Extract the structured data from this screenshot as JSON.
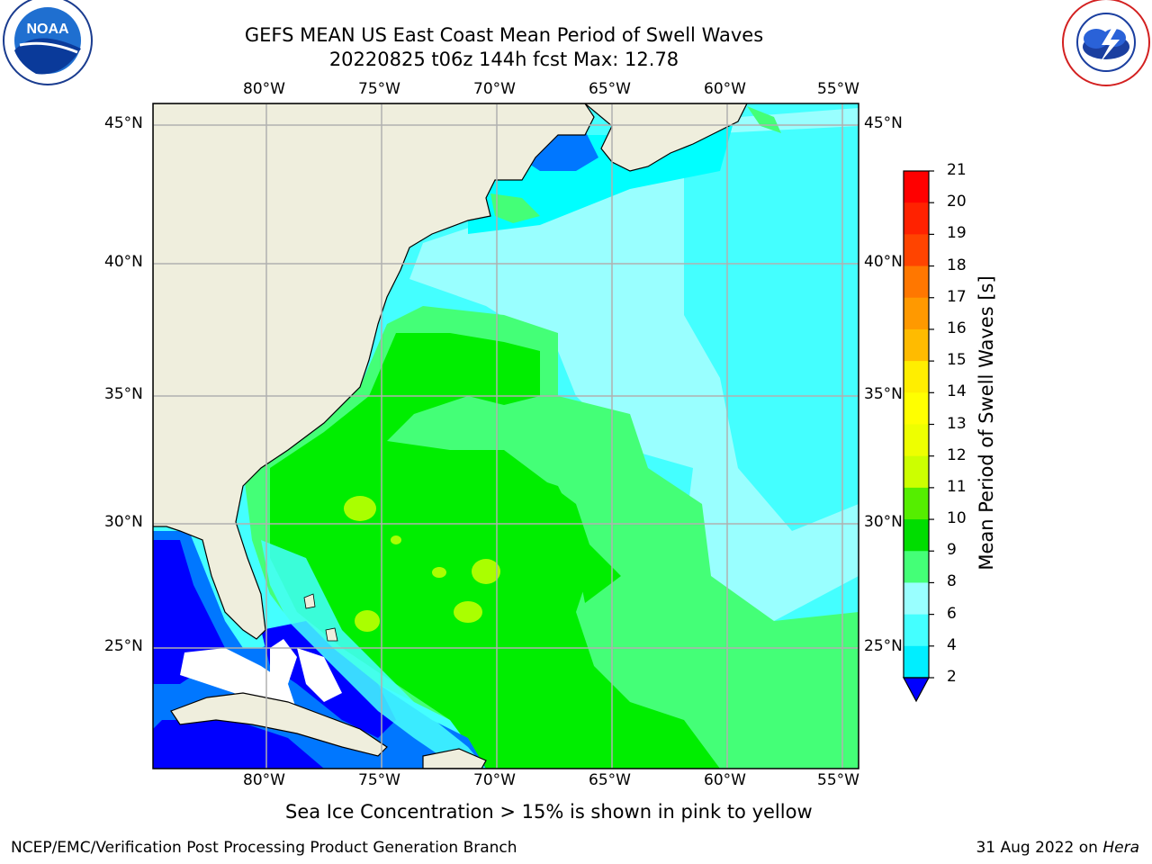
{
  "header": {
    "title_line1": "GEFS MEAN US East Coast Mean Period of Swell Waves",
    "title_line2": "20220825 t06z 144h fcst   Max: 12.78"
  },
  "logos": {
    "noaa": "NOAA",
    "nws": "NATIONAL WEATHER SERVICE"
  },
  "map": {
    "lon_labels": [
      "80°W",
      "75°W",
      "70°W",
      "65°W",
      "60°W",
      "55°W"
    ],
    "lat_labels": [
      "45°N",
      "40°N",
      "35°N",
      "30°N",
      "25°N"
    ],
    "colors": {
      "land": "#efeedd",
      "ice_or_nodata": "#ffffff",
      "deep_blue": "#0000ff",
      "blue": "#0077ff",
      "cyan": "#00e5ff",
      "light_cyan": "#44ffff",
      "pale_cyan": "#99ffff",
      "light_green": "#44ff77",
      "green": "#00ee00",
      "yellow_green": "#aaff00",
      "grid": "#b0b0b0"
    }
  },
  "colorbar": {
    "label": "Mean Period of Swell Waves [s]",
    "ticks": [
      "21",
      "20",
      "19",
      "18",
      "17",
      "16",
      "15",
      "14",
      "13",
      "12",
      "11",
      "10",
      "9",
      "8",
      "6",
      "4",
      "2"
    ],
    "bands": [
      "#ff0000",
      "#ff2200",
      "#ff4400",
      "#ff7700",
      "#ff9900",
      "#ffbb00",
      "#ffee00",
      "#ffff00",
      "#eeff00",
      "#ccff00",
      "#55ee00",
      "#00dd00",
      "#44ff77",
      "#99ffff",
      "#44ffff",
      "#00eeff",
      "#0077ff",
      "#0000ff"
    ]
  },
  "caption": "Sea Ice Concentration > 15% is shown in pink to yellow",
  "footer": {
    "left": "NCEP/EMC/Verification Post Processing Product Generation Branch",
    "right_date": "31 Aug 2022 on ",
    "right_host": "Hera"
  }
}
